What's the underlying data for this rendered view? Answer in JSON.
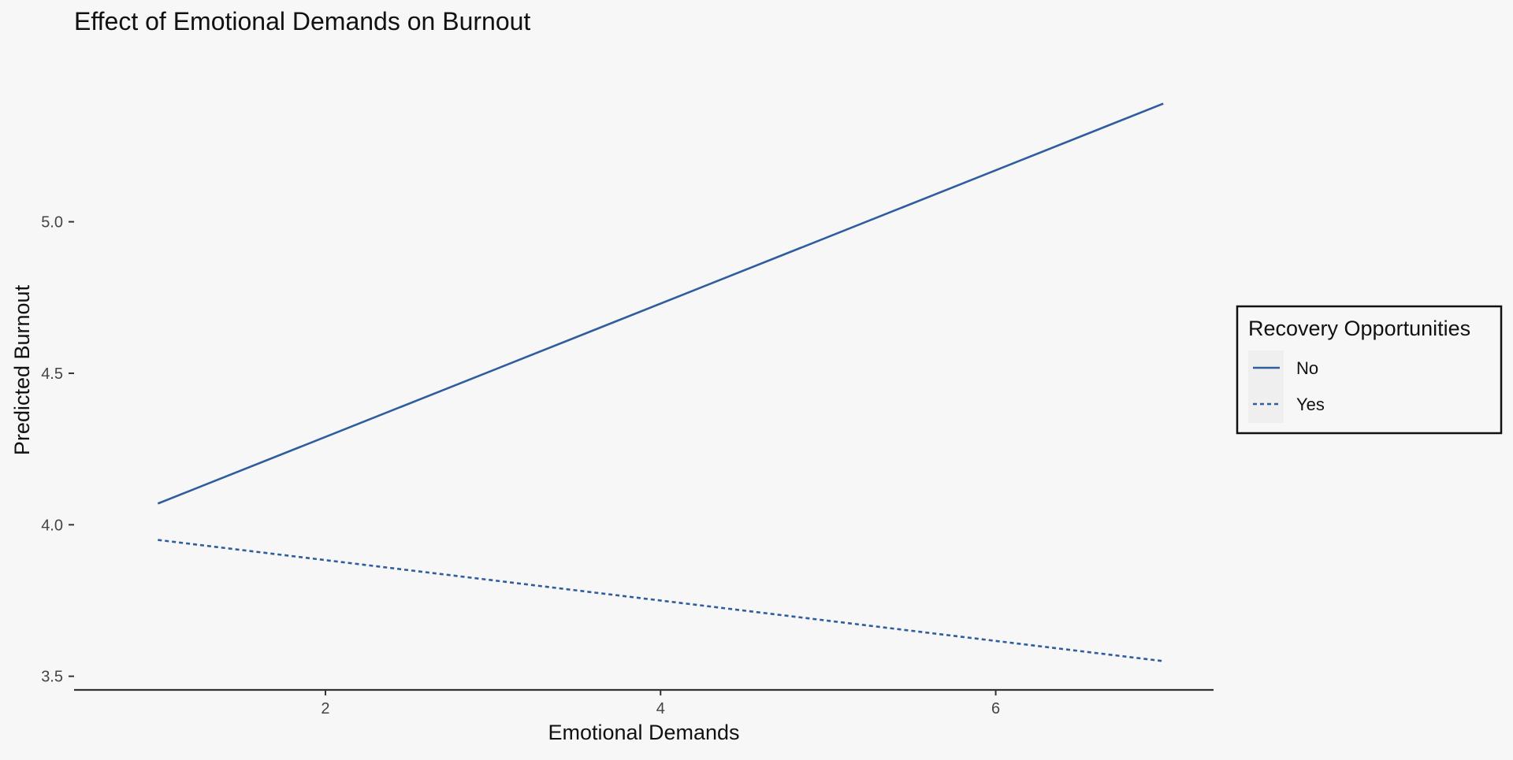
{
  "chart_data": {
    "type": "line",
    "title": "Effect of Emotional Demands on Burnout",
    "xlabel": "Emotional Demands",
    "ylabel": "Predicted Burnout",
    "xlim": [
      0.5,
      7.3
    ],
    "ylim": [
      3.455,
      5.55
    ],
    "xticks": [
      2,
      4,
      6
    ],
    "xtick_labels": [
      "2",
      "4",
      "6"
    ],
    "yticks": [
      3.5,
      4.0,
      4.5,
      5.0
    ],
    "ytick_labels": [
      "3.5",
      "4.0",
      "4.5",
      "5.0"
    ],
    "grid": false,
    "legend": {
      "title": "Recovery Opportunities",
      "position": "right"
    },
    "series": [
      {
        "name": "No",
        "line_style": "solid",
        "color": "#2f5d9e",
        "x": [
          1,
          7
        ],
        "y": [
          4.07,
          5.39
        ]
      },
      {
        "name": "Yes",
        "line_style": "dotted",
        "color": "#2f5d9e",
        "x": [
          1,
          7
        ],
        "y": [
          3.95,
          3.55
        ]
      }
    ]
  }
}
